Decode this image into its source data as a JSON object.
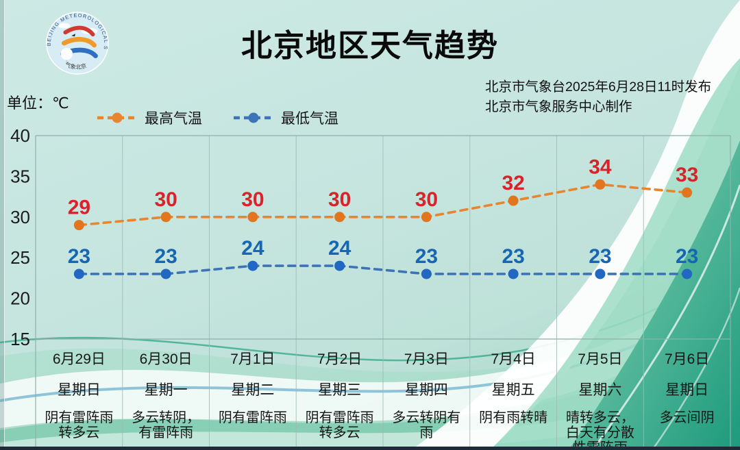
{
  "header": {
    "title": "北京地区天气趋势",
    "issued_by": "北京市气象台2025年6月28日11时发布",
    "produced_by": "北京市气象服务中心制作",
    "logo_ring_text": "BEIJING METEOROLOGICAL SERVICE",
    "logo_bottom_text": "气象北京"
  },
  "chart": {
    "unit_label": "单位：℃",
    "legend": [
      {
        "label": "最高气温",
        "color": "#E8852F"
      },
      {
        "label": "最低气温",
        "color": "#3D74B8"
      }
    ]
  },
  "chart_data": {
    "type": "line",
    "title": "北京地区天气趋势",
    "ylabel": "单位：℃",
    "ylim": [
      15,
      40
    ],
    "yticks": [
      40,
      35,
      30,
      25,
      20,
      15
    ],
    "grid": "vertical-only",
    "legend_position": "top-left",
    "categories": [
      "6月29日",
      "6月30日",
      "7月1日",
      "7月2日",
      "7月3日",
      "7月4日",
      "7月5日",
      "7月6日"
    ],
    "weekdays": [
      "星期日",
      "星期一",
      "星期二",
      "星期三",
      "星期四",
      "星期五",
      "星期六",
      "星期日"
    ],
    "weather": [
      "阴有雷阵雨转多云",
      "多云转阴，有雷阵雨",
      "阴有雷阵雨",
      "阴有雷阵雨转多云",
      "多云转阴有雨",
      "阴有雨转晴",
      "晴转多云，白天有分散性雷阵雨",
      "多云间阴"
    ],
    "series": [
      {
        "name": "最高气温",
        "values": [
          29,
          30,
          30,
          30,
          30,
          32,
          34,
          33
        ],
        "line_color": "#E8852F",
        "point_color": "#E2761F",
        "label_color": "#D8232A"
      },
      {
        "name": "最低气温",
        "values": [
          23,
          23,
          24,
          24,
          23,
          23,
          23,
          23
        ],
        "line_color": "#3D74B8",
        "point_color": "#2268C2",
        "label_color": "#1766B3"
      }
    ]
  },
  "colors": {
    "background_top": "#C9E6E1",
    "background_green": "#23A183",
    "wave_white": "#FFFFFF",
    "grid_line": "#9FBAB6",
    "plot_border": "#8FAFAB",
    "axis_text": "#1C1C1C",
    "bottom_strip": "#1E2A38"
  }
}
